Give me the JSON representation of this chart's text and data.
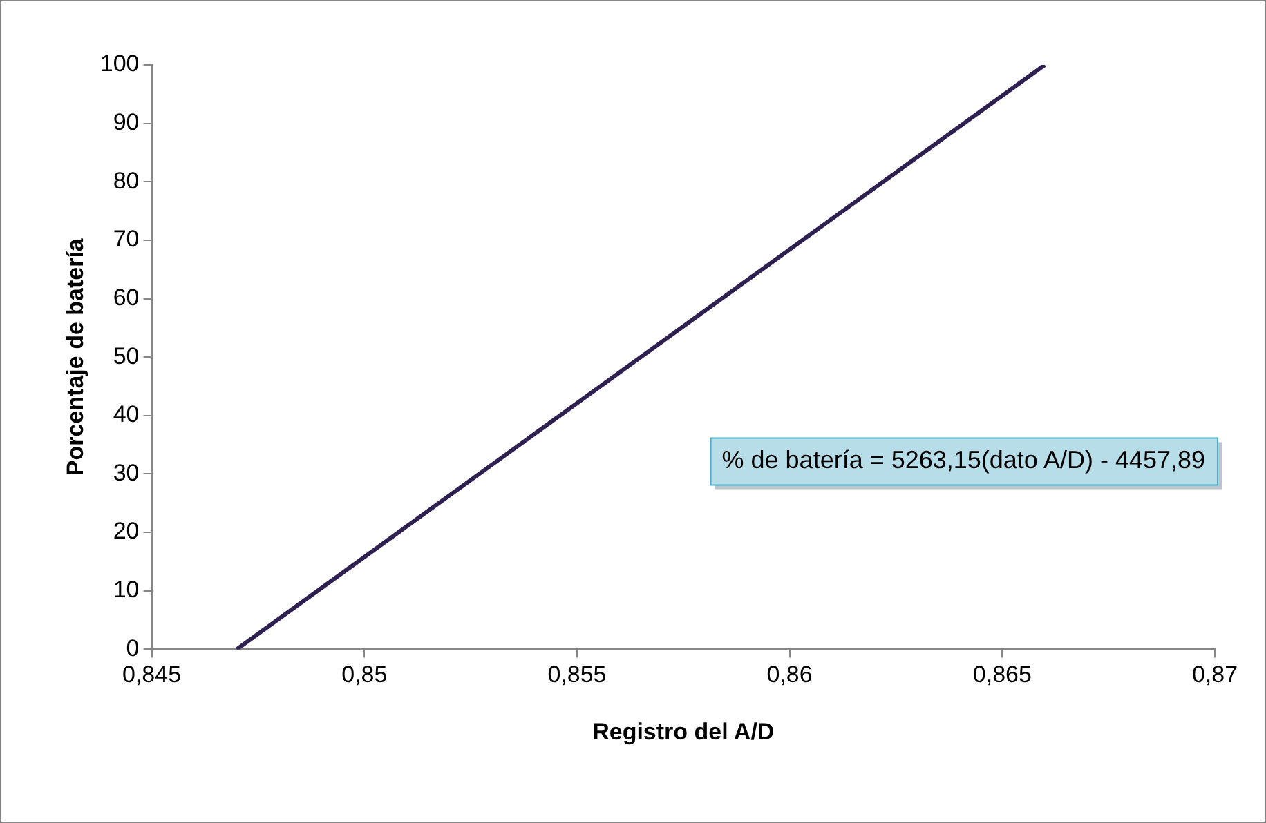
{
  "chart_data": {
    "type": "line",
    "xlabel": "Registro del A/D",
    "ylabel": "Porcentaje de batería",
    "x": [
      0.847,
      0.866
    ],
    "series": [
      {
        "color": "#2e2050",
        "values": [
          0,
          100
        ]
      }
    ],
    "xlim": [
      0.845,
      0.87
    ],
    "xticks": [
      {
        "value": 0.845,
        "label": "0,845"
      },
      {
        "value": 0.85,
        "label": "0,85"
      },
      {
        "value": 0.855,
        "label": "0,855"
      },
      {
        "value": 0.86,
        "label": "0,86"
      },
      {
        "value": 0.865,
        "label": "0,865"
      },
      {
        "value": 0.87,
        "label": "0,87"
      }
    ],
    "ylim": [
      0,
      100
    ],
    "yticks": [
      0,
      10,
      20,
      30,
      40,
      50,
      60,
      70,
      80,
      90,
      100
    ],
    "grid": false,
    "legend": false,
    "marker": "none",
    "line_style": "solid",
    "annotations": [
      "% de batería = 5263,15(dato A/D) - 4457,89"
    ]
  }
}
